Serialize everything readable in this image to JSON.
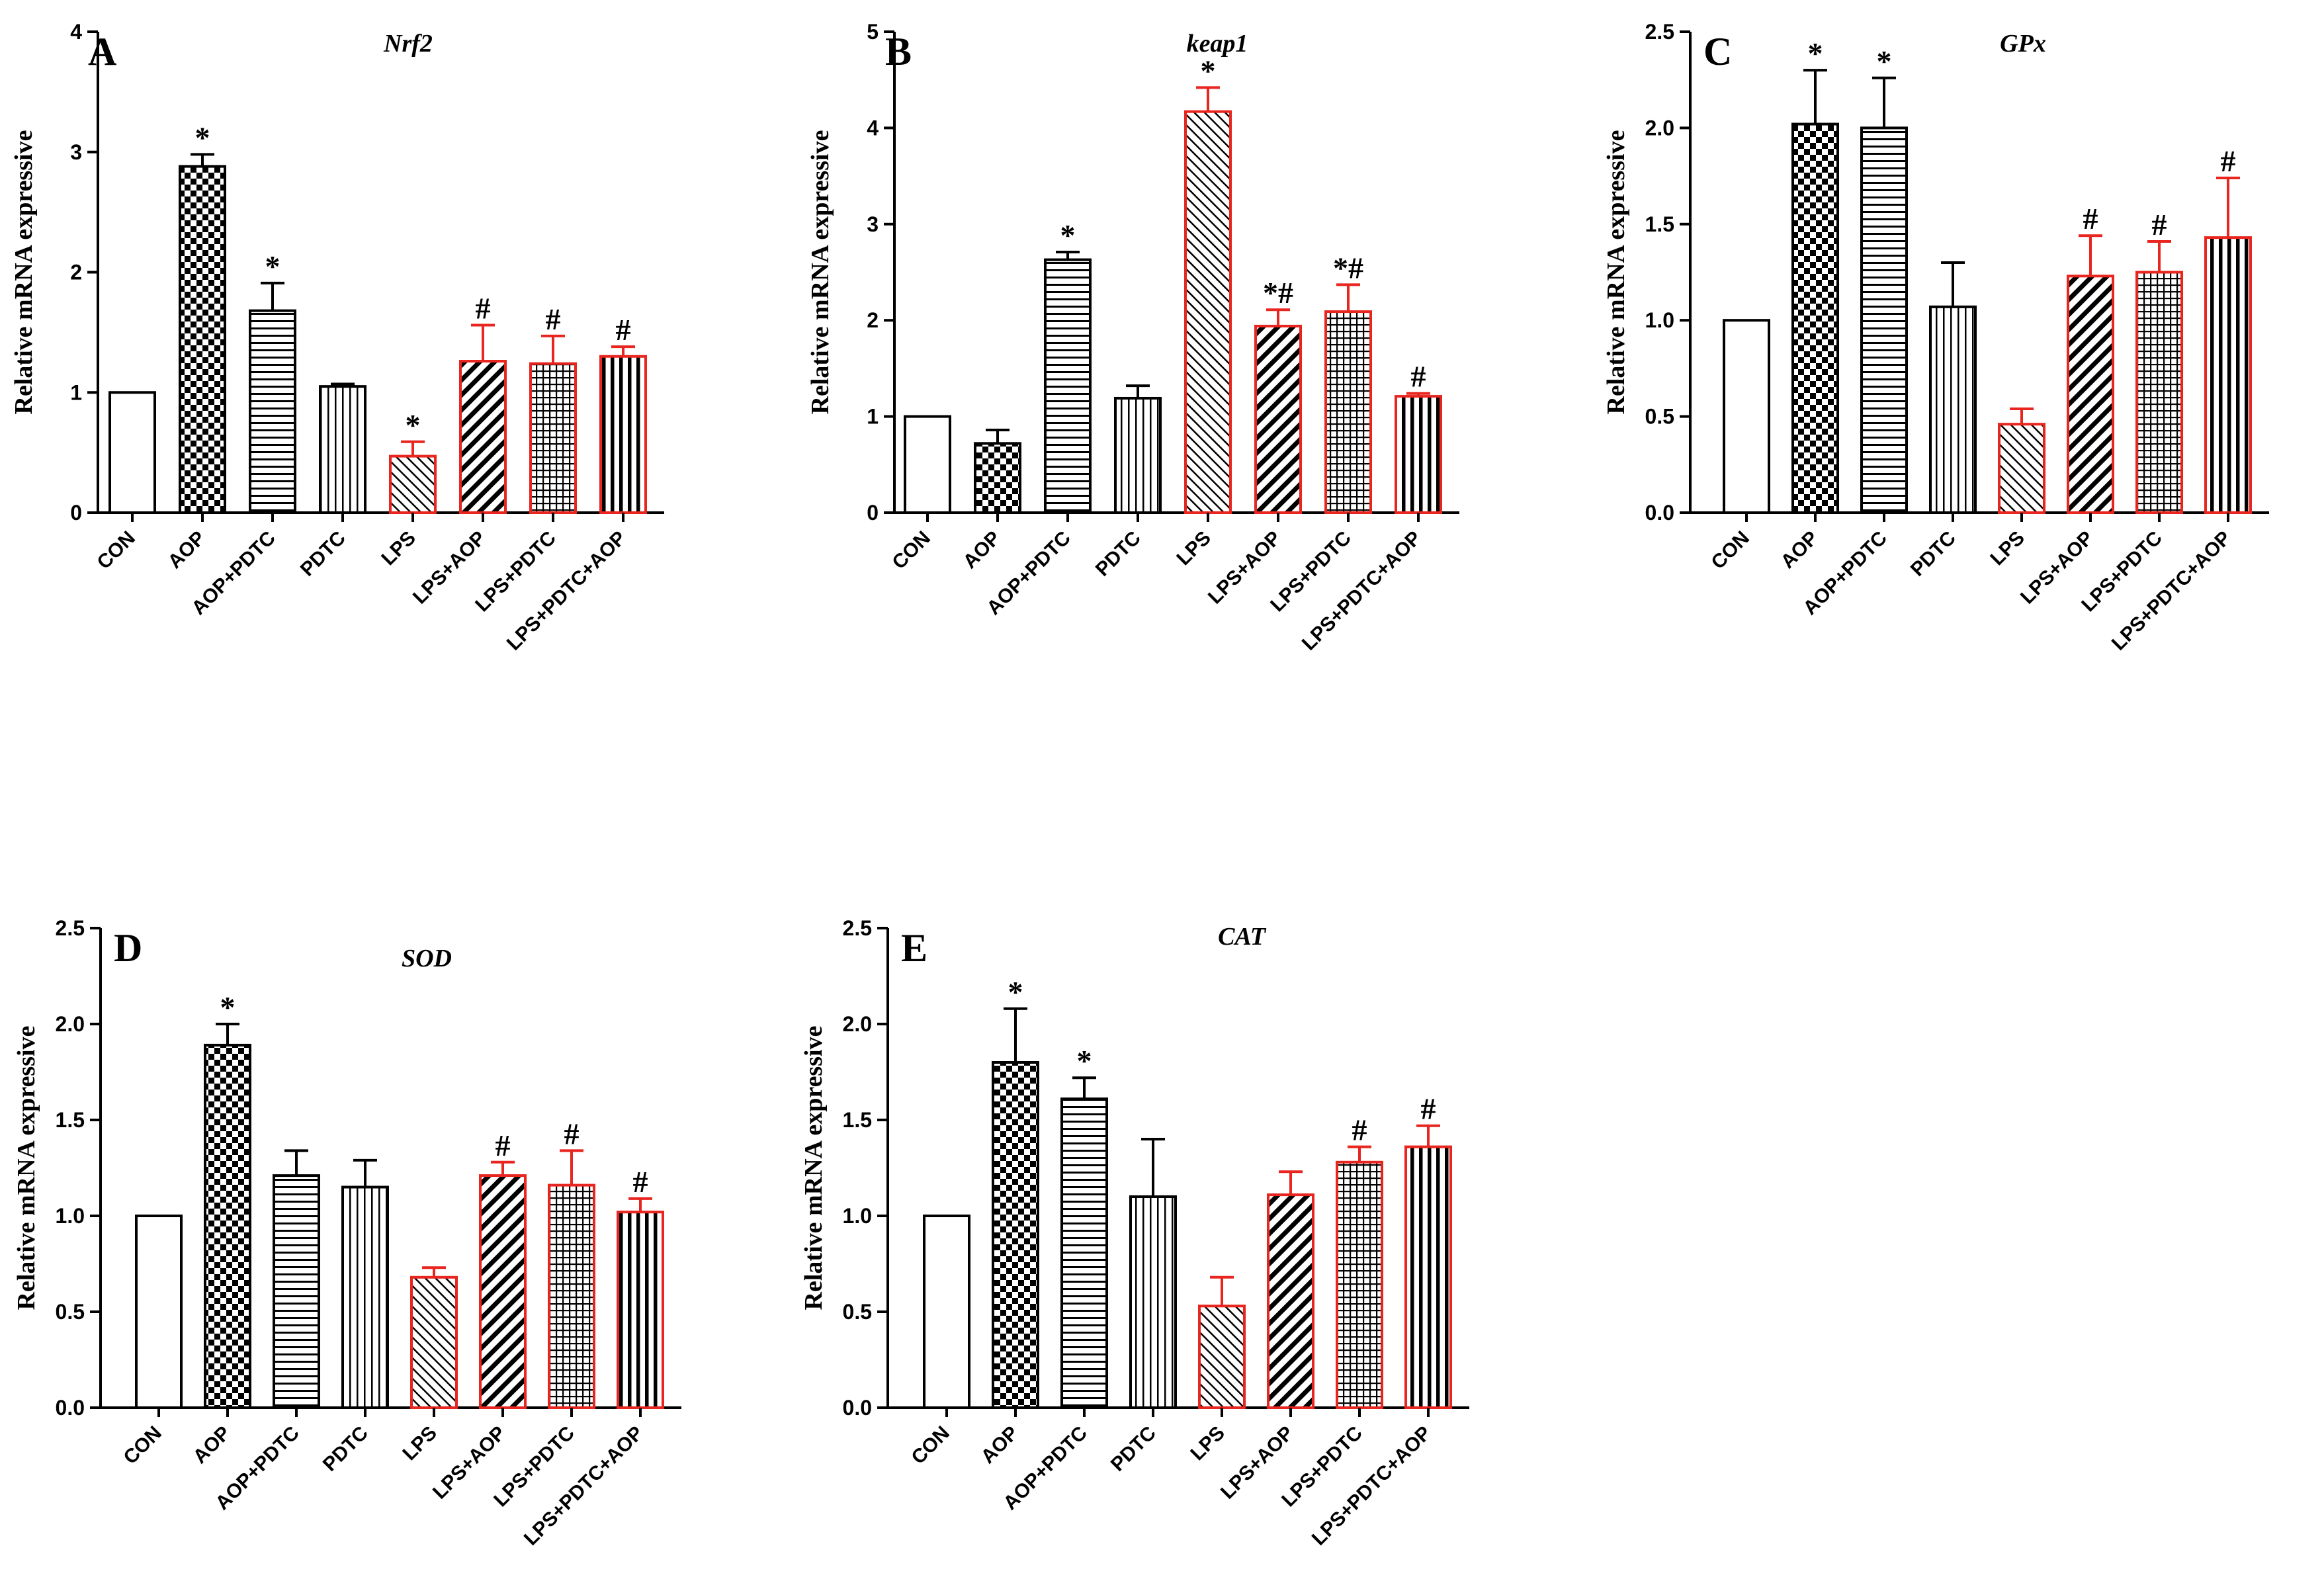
{
  "figure": {
    "y_axis_label": "Relative mRNA expressive",
    "categories": [
      "CON",
      "AOP",
      "AOP+PDTC",
      "PDTC",
      "LPS",
      "LPS+AOP",
      "LPS+PDTC",
      "LPS+PDTC+AOP"
    ],
    "colors": {
      "control_group": "#000000",
      "lps_group": "#e8251f",
      "bar_fill": "#ffffff"
    },
    "patterns": [
      "none",
      "checker",
      "horizontal",
      "vertical",
      "diagonal-fine",
      "diagonal-bold",
      "grid",
      "vertical-bold"
    ]
  },
  "chart_data": [
    {
      "type": "bar",
      "letter": "A",
      "title": "Nrf2",
      "ylabel": "Relative mRNA expressive",
      "ylim": [
        0,
        4
      ],
      "yticks": [
        0,
        1,
        2,
        3,
        4
      ],
      "ytick_labels": [
        "0",
        "1",
        "2",
        "3",
        "4"
      ],
      "categories": [
        "CON",
        "AOP",
        "AOP+PDTC",
        "PDTC",
        "LPS",
        "LPS+AOP",
        "LPS+PDTC",
        "LPS+PDTC+AOP"
      ],
      "values": [
        1.0,
        2.88,
        1.68,
        1.05,
        0.47,
        1.26,
        1.24,
        1.3
      ],
      "errors": [
        0,
        0.1,
        0.23,
        0.02,
        0.12,
        0.3,
        0.23,
        0.08
      ],
      "significance": [
        "",
        "*",
        "*",
        "",
        "*",
        "#",
        "#",
        "#"
      ]
    },
    {
      "type": "bar",
      "letter": "B",
      "title": "keap1",
      "ylabel": "Relative mRNA expressive",
      "ylim": [
        0,
        5
      ],
      "yticks": [
        0,
        1,
        2,
        3,
        4,
        5
      ],
      "ytick_labels": [
        "0",
        "1",
        "2",
        "3",
        "4",
        "5"
      ],
      "categories": [
        "CON",
        "AOP",
        "AOP+PDTC",
        "PDTC",
        "LPS",
        "LPS+AOP",
        "LPS+PDTC",
        "LPS+PDTC+AOP"
      ],
      "values": [
        1.0,
        0.72,
        2.63,
        1.19,
        4.17,
        1.94,
        2.09,
        1.21
      ],
      "errors": [
        0,
        0.14,
        0.08,
        0.13,
        0.25,
        0.17,
        0.28,
        0.03
      ],
      "significance": [
        "",
        "",
        "*",
        "",
        "*",
        "*#",
        "*#",
        "#"
      ]
    },
    {
      "type": "bar",
      "letter": "C",
      "title": "GPx",
      "ylabel": "Relative mRNA expressive",
      "ylim": [
        0,
        2.5
      ],
      "yticks": [
        0,
        0.5,
        1.0,
        1.5,
        2.0,
        2.5
      ],
      "ytick_labels": [
        "0.0",
        "0.5",
        "1.0",
        "1.5",
        "2.0",
        "2.5"
      ],
      "categories": [
        "CON",
        "AOP",
        "AOP+PDTC",
        "PDTC",
        "LPS",
        "LPS+AOP",
        "LPS+PDTC",
        "LPS+PDTC+AOP"
      ],
      "values": [
        1.0,
        2.02,
        2.0,
        1.07,
        0.46,
        1.23,
        1.25,
        1.43
      ],
      "errors": [
        0,
        0.28,
        0.26,
        0.23,
        0.08,
        0.21,
        0.16,
        0.31
      ],
      "significance": [
        "",
        "*",
        "*",
        "",
        "",
        "#",
        "#",
        "#"
      ]
    },
    {
      "type": "bar",
      "letter": "D",
      "title": "SOD",
      "ylabel": "Relative mRNA expressive",
      "ylim": [
        0,
        2.5
      ],
      "yticks": [
        0,
        0.5,
        1.0,
        1.5,
        2.0,
        2.5
      ],
      "ytick_labels": [
        "0.0",
        "0.5",
        "1.0",
        "1.5",
        "2.0",
        "2.5"
      ],
      "categories": [
        "CON",
        "AOP",
        "AOP+PDTC",
        "PDTC",
        "LPS",
        "LPS+AOP",
        "LPS+PDTC",
        "LPS+PDTC+AOP"
      ],
      "values": [
        1.0,
        1.89,
        1.21,
        1.15,
        0.68,
        1.21,
        1.16,
        1.02
      ],
      "errors": [
        0,
        0.11,
        0.13,
        0.14,
        0.05,
        0.07,
        0.18,
        0.07
      ],
      "significance": [
        "",
        "*",
        "",
        "",
        "",
        "#",
        "#",
        "#"
      ]
    },
    {
      "type": "bar",
      "letter": "E",
      "title": "CAT",
      "ylabel": "Relative mRNA expressive",
      "ylim": [
        0,
        2.5
      ],
      "yticks": [
        0,
        0.5,
        1.0,
        1.5,
        2.0,
        2.5
      ],
      "ytick_labels": [
        "0.0",
        "0.5",
        "1.0",
        "1.5",
        "2.0",
        "2.5"
      ],
      "categories": [
        "CON",
        "AOP",
        "AOP+PDTC",
        "PDTC",
        "LPS",
        "LPS+AOP",
        "LPS+PDTC",
        "LPS+PDTC+AOP"
      ],
      "values": [
        1.0,
        1.8,
        1.61,
        1.1,
        0.53,
        1.11,
        1.28,
        1.36
      ],
      "errors": [
        0,
        0.28,
        0.11,
        0.3,
        0.15,
        0.12,
        0.08,
        0.11
      ],
      "significance": [
        "",
        "*",
        "*",
        "",
        "",
        "",
        "#",
        "#"
      ]
    }
  ]
}
